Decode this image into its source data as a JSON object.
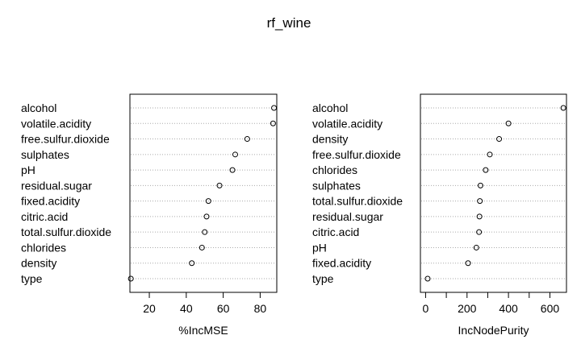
{
  "chart_data": [
    {
      "type": "dotchart",
      "title": "rf_wine",
      "xlabel": "%IncMSE",
      "ylabel": "",
      "xlim": [
        9.5,
        89
      ],
      "xticks": [
        20,
        40,
        60,
        80
      ],
      "grid": "dotted-horizontal",
      "points": [
        {
          "label": "alcohol",
          "value": 87.5
        },
        {
          "label": "volatile.acidity",
          "value": 87
        },
        {
          "label": "free.sulfur.dioxide",
          "value": 73
        },
        {
          "label": "sulphates",
          "value": 66.5
        },
        {
          "label": "pH",
          "value": 65
        },
        {
          "label": "residual.sugar",
          "value": 58
        },
        {
          "label": "fixed.acidity",
          "value": 52
        },
        {
          "label": "citric.acid",
          "value": 51
        },
        {
          "label": "total.sulfur.dioxide",
          "value": 50
        },
        {
          "label": "chlorides",
          "value": 48.5
        },
        {
          "label": "density",
          "value": 43
        },
        {
          "label": "type",
          "value": 10
        }
      ]
    },
    {
      "type": "dotchart",
      "title": "",
      "xlabel": "IncNodePurity",
      "ylabel": "",
      "xlim": [
        -25,
        680
      ],
      "xticks": [
        0,
        200,
        400,
        600
      ],
      "minor_xticks": [
        100,
        300,
        500
      ],
      "grid": "dotted-horizontal",
      "points": [
        {
          "label": "alcohol",
          "value": 665
        },
        {
          "label": "volatile.acidity",
          "value": 400
        },
        {
          "label": "density",
          "value": 355
        },
        {
          "label": "free.sulfur.dioxide",
          "value": 310
        },
        {
          "label": "chlorides",
          "value": 290
        },
        {
          "label": "sulphates",
          "value": 265
        },
        {
          "label": "total.sulfur.dioxide",
          "value": 262
        },
        {
          "label": "residual.sugar",
          "value": 260
        },
        {
          "label": "citric.acid",
          "value": 258
        },
        {
          "label": "pH",
          "value": 245
        },
        {
          "label": "fixed.acidity",
          "value": 205
        },
        {
          "label": "type",
          "value": 10
        }
      ]
    }
  ]
}
